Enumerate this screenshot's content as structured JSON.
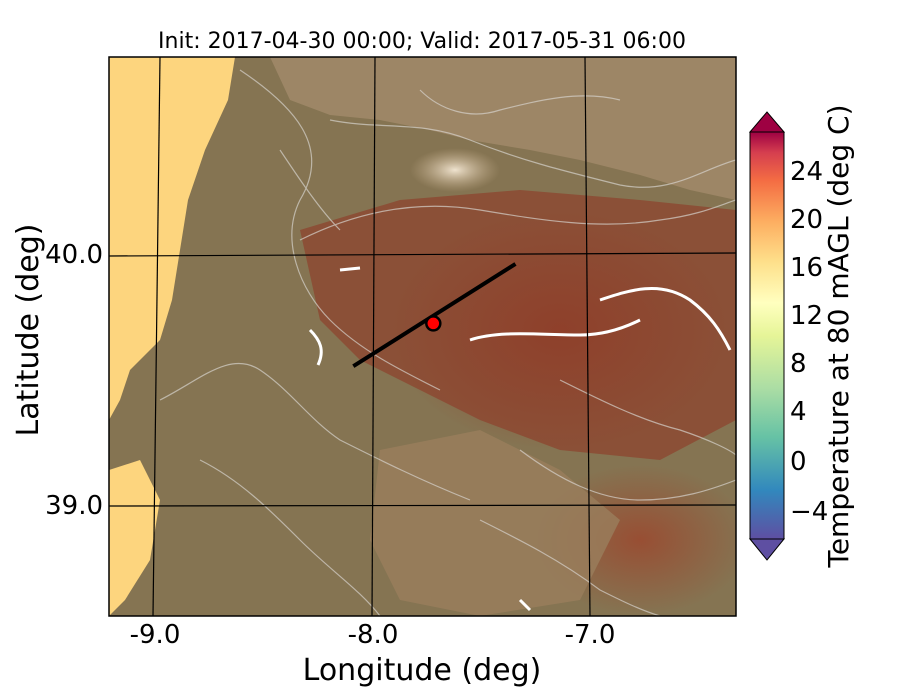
{
  "title": "Init: 2017-04-30 00:00; Valid: 2017-05-31 06:00",
  "axes": {
    "xlabel": "Longitude (deg)",
    "ylabel": "Latitude (deg)",
    "xticks": [
      "-9.0",
      "-8.0",
      "-7.0"
    ],
    "yticks": [
      "40.0",
      "39.0"
    ],
    "xlim": [
      -9.25,
      -6.35
    ],
    "ylim": [
      38.45,
      40.8
    ]
  },
  "colorbar": {
    "label": "Temperature at 80 mAGL (deg C)",
    "ticks": [
      "24",
      "20",
      "16",
      "12",
      "8",
      "4",
      "0",
      "−4"
    ],
    "range": [
      -6,
      28
    ],
    "extend": "both"
  },
  "overlay": {
    "transect": {
      "start": [
        -8.12,
        39.5
      ],
      "end": [
        -7.37,
        39.93
      ]
    },
    "marker": {
      "lon": -7.75,
      "lat": 39.68,
      "color": "#ff0000"
    }
  },
  "colors": {
    "ocean": "#fdd57e",
    "land_low": "#857452",
    "land_warm": "#8c4a32",
    "contour": "#d6d2cc"
  }
}
